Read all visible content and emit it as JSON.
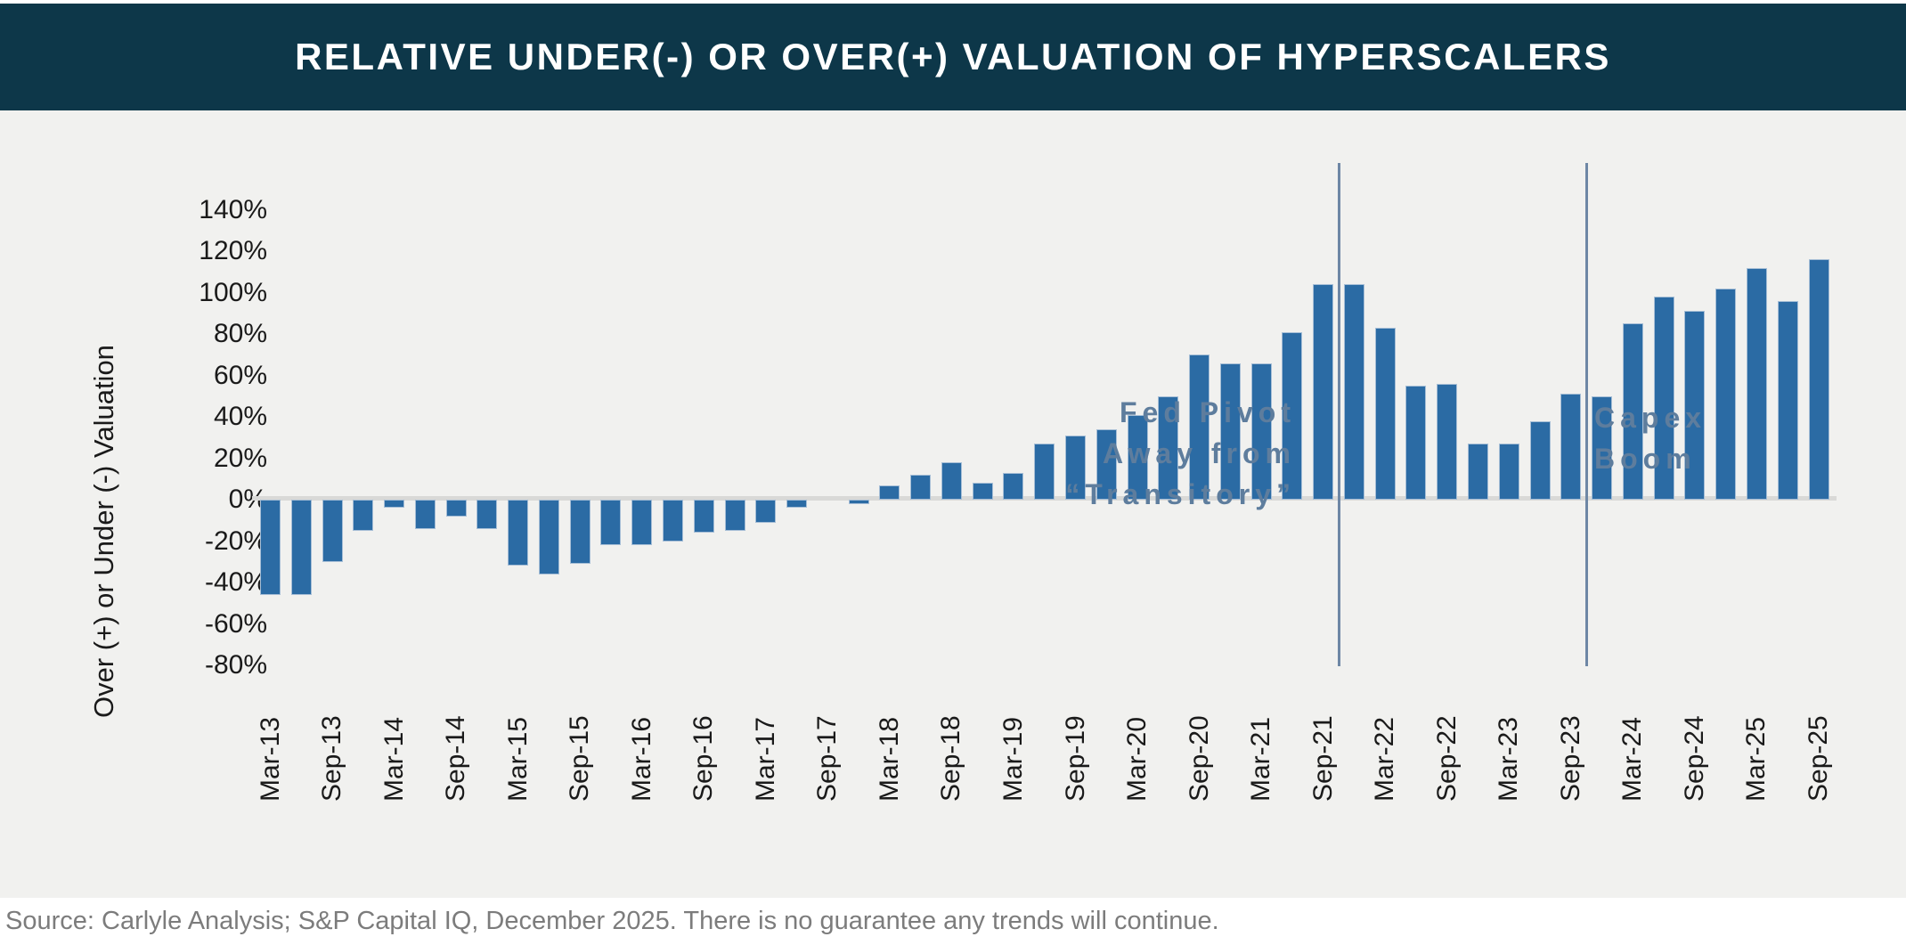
{
  "header": {
    "title": "RELATIVE UNDER(-) OR OVER(+) VALUATION OF HYPERSCALERS"
  },
  "y_axis": {
    "title": "Over (+) or Under (-) Valuation",
    "ticks": [
      "140%",
      "120%",
      "100%",
      "80%",
      "60%",
      "40%",
      "20%",
      "0%",
      "-20%",
      "-40%",
      "-60%",
      "-80%"
    ]
  },
  "annotations": [
    {
      "name": "fed-pivot",
      "lines": [
        "Fed Pivot",
        "Away from",
        "“Transitory”"
      ],
      "between": [
        "Sep-21",
        "Dec-21"
      ]
    },
    {
      "name": "capex-boom",
      "lines": [
        "Capex",
        "Boom"
      ],
      "between": [
        "Sep-23",
        "Dec-23"
      ]
    }
  ],
  "footer": {
    "source": "Source: Carlyle Analysis; S&P Capital IQ, December 2025. There is no guarantee any trends will continue."
  },
  "colors": {
    "header_bg": "#0d3749",
    "header_text": "#ffffff",
    "chart_bg": "#f1f1ef",
    "bar": "#2b6ba4",
    "bar_border": "#a6bed6",
    "axis_line": "#d9d9d7",
    "text": "#1a1a1a",
    "annotation_text": "#5e7d9d",
    "annotation_line": "#6e87a5",
    "source_text": "#7c7c7c"
  },
  "chart_data": {
    "type": "bar",
    "title": "RELATIVE UNDER(-) OR OVER(+) VALUATION OF HYPERSCALERS",
    "xlabel": "",
    "ylabel": "Over (+) or Under (-) Valuation",
    "ylim": [
      -80,
      140
    ],
    "y_tick_step": 20,
    "grid": false,
    "legend": false,
    "categories": [
      "Mar-13",
      "Jun-13",
      "Sep-13",
      "Dec-13",
      "Mar-14",
      "Jun-14",
      "Sep-14",
      "Dec-14",
      "Mar-15",
      "Jun-15",
      "Sep-15",
      "Dec-15",
      "Mar-16",
      "Jun-16",
      "Sep-16",
      "Dec-16",
      "Mar-17",
      "Jun-17",
      "Sep-17",
      "Dec-17",
      "Mar-18",
      "Jun-18",
      "Sep-18",
      "Dec-18",
      "Mar-19",
      "Jun-19",
      "Sep-19",
      "Dec-19",
      "Mar-20",
      "Jun-20",
      "Sep-20",
      "Dec-20",
      "Mar-21",
      "Jun-21",
      "Sep-21",
      "Dec-21",
      "Mar-22",
      "Jun-22",
      "Sep-22",
      "Dec-22",
      "Mar-23",
      "Jun-23",
      "Sep-23",
      "Dec-23",
      "Mar-24",
      "Jun-24",
      "Sep-24",
      "Dec-24",
      "Mar-25",
      "Jun-25",
      "Sep-25"
    ],
    "values": [
      -46,
      -46,
      -30,
      -15,
      -4,
      -14,
      -8,
      -14,
      -32,
      -36,
      -31,
      -22,
      -22,
      -20,
      -16,
      -15,
      -11,
      -4,
      0,
      -2,
      7,
      12,
      18,
      8,
      13,
      27,
      31,
      34,
      41,
      50,
      70,
      66,
      66,
      81,
      104,
      104,
      83,
      55,
      56,
      27,
      27,
      38,
      51,
      50,
      85,
      98,
      91,
      102,
      112,
      96,
      116
    ],
    "x_tick_labels": [
      "Mar-13",
      "Sep-13",
      "Mar-14",
      "Sep-14",
      "Mar-15",
      "Sep-15",
      "Mar-16",
      "Sep-16",
      "Mar-17",
      "Sep-17",
      "Mar-18",
      "Sep-18",
      "Mar-19",
      "Sep-19",
      "Mar-20",
      "Sep-20",
      "Mar-21",
      "Sep-21",
      "Mar-22",
      "Sep-22",
      "Mar-23",
      "Sep-23",
      "Mar-24",
      "Sep-24",
      "Mar-25",
      "Sep-25"
    ],
    "annotation_events": [
      {
        "label": "Fed Pivot Away from “Transitory”",
        "line_between": [
          "Sep-21",
          "Dec-21"
        ]
      },
      {
        "label": "Capex Boom",
        "line_between": [
          "Sep-23",
          "Dec-23"
        ]
      }
    ]
  }
}
